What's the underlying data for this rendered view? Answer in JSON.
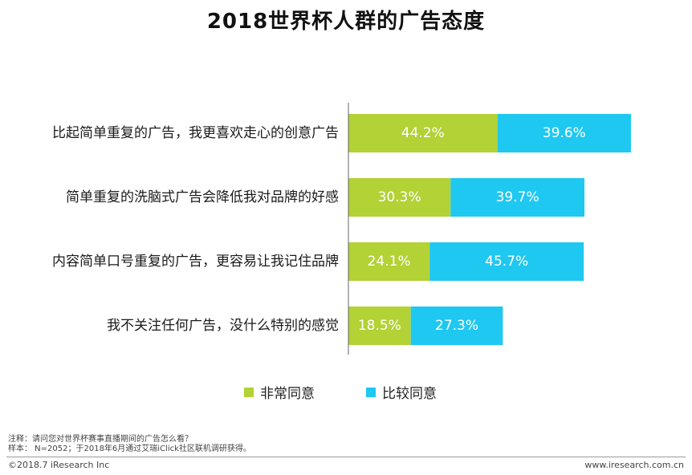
{
  "chart_data": {
    "type": "bar",
    "orientation": "horizontal",
    "stacked": true,
    "title": "2018世界杯人群的广告态度",
    "categories": [
      "比起简单重复的广告，我更喜欢走心的创意广告",
      "简单重复的洗脑式广告会降低我对品牌的好感",
      "内容简单口号重复的广告，更容易让我记住品牌",
      "我不关注任何广告，没什么特别的感觉"
    ],
    "series": [
      {
        "name": "非常同意",
        "color": "#b2d235",
        "values": [
          44.2,
          30.3,
          24.1,
          18.5
        ],
        "labels": [
          "44.2%",
          "30.3%",
          "24.1%",
          "18.5%"
        ]
      },
      {
        "name": "比较同意",
        "color": "#1fc8f0",
        "values": [
          39.6,
          39.7,
          45.7,
          27.3
        ],
        "labels": [
          "39.6%",
          "39.7%",
          "45.7%",
          "27.3%"
        ]
      }
    ],
    "unit": "%",
    "xlim": [
      0,
      100
    ],
    "grid": false,
    "legend_position": "bottom"
  },
  "notes": {
    "line1": "注释：请问您对世界杯赛事直播期间的广告怎么看？",
    "line2": "样本： N=2052；于2018年6月通过艾瑞iClick社区联机调研获得。"
  },
  "footer": {
    "copyright": "©2018.7 iResearch Inc",
    "website": "www.iresearch.com.cn"
  }
}
